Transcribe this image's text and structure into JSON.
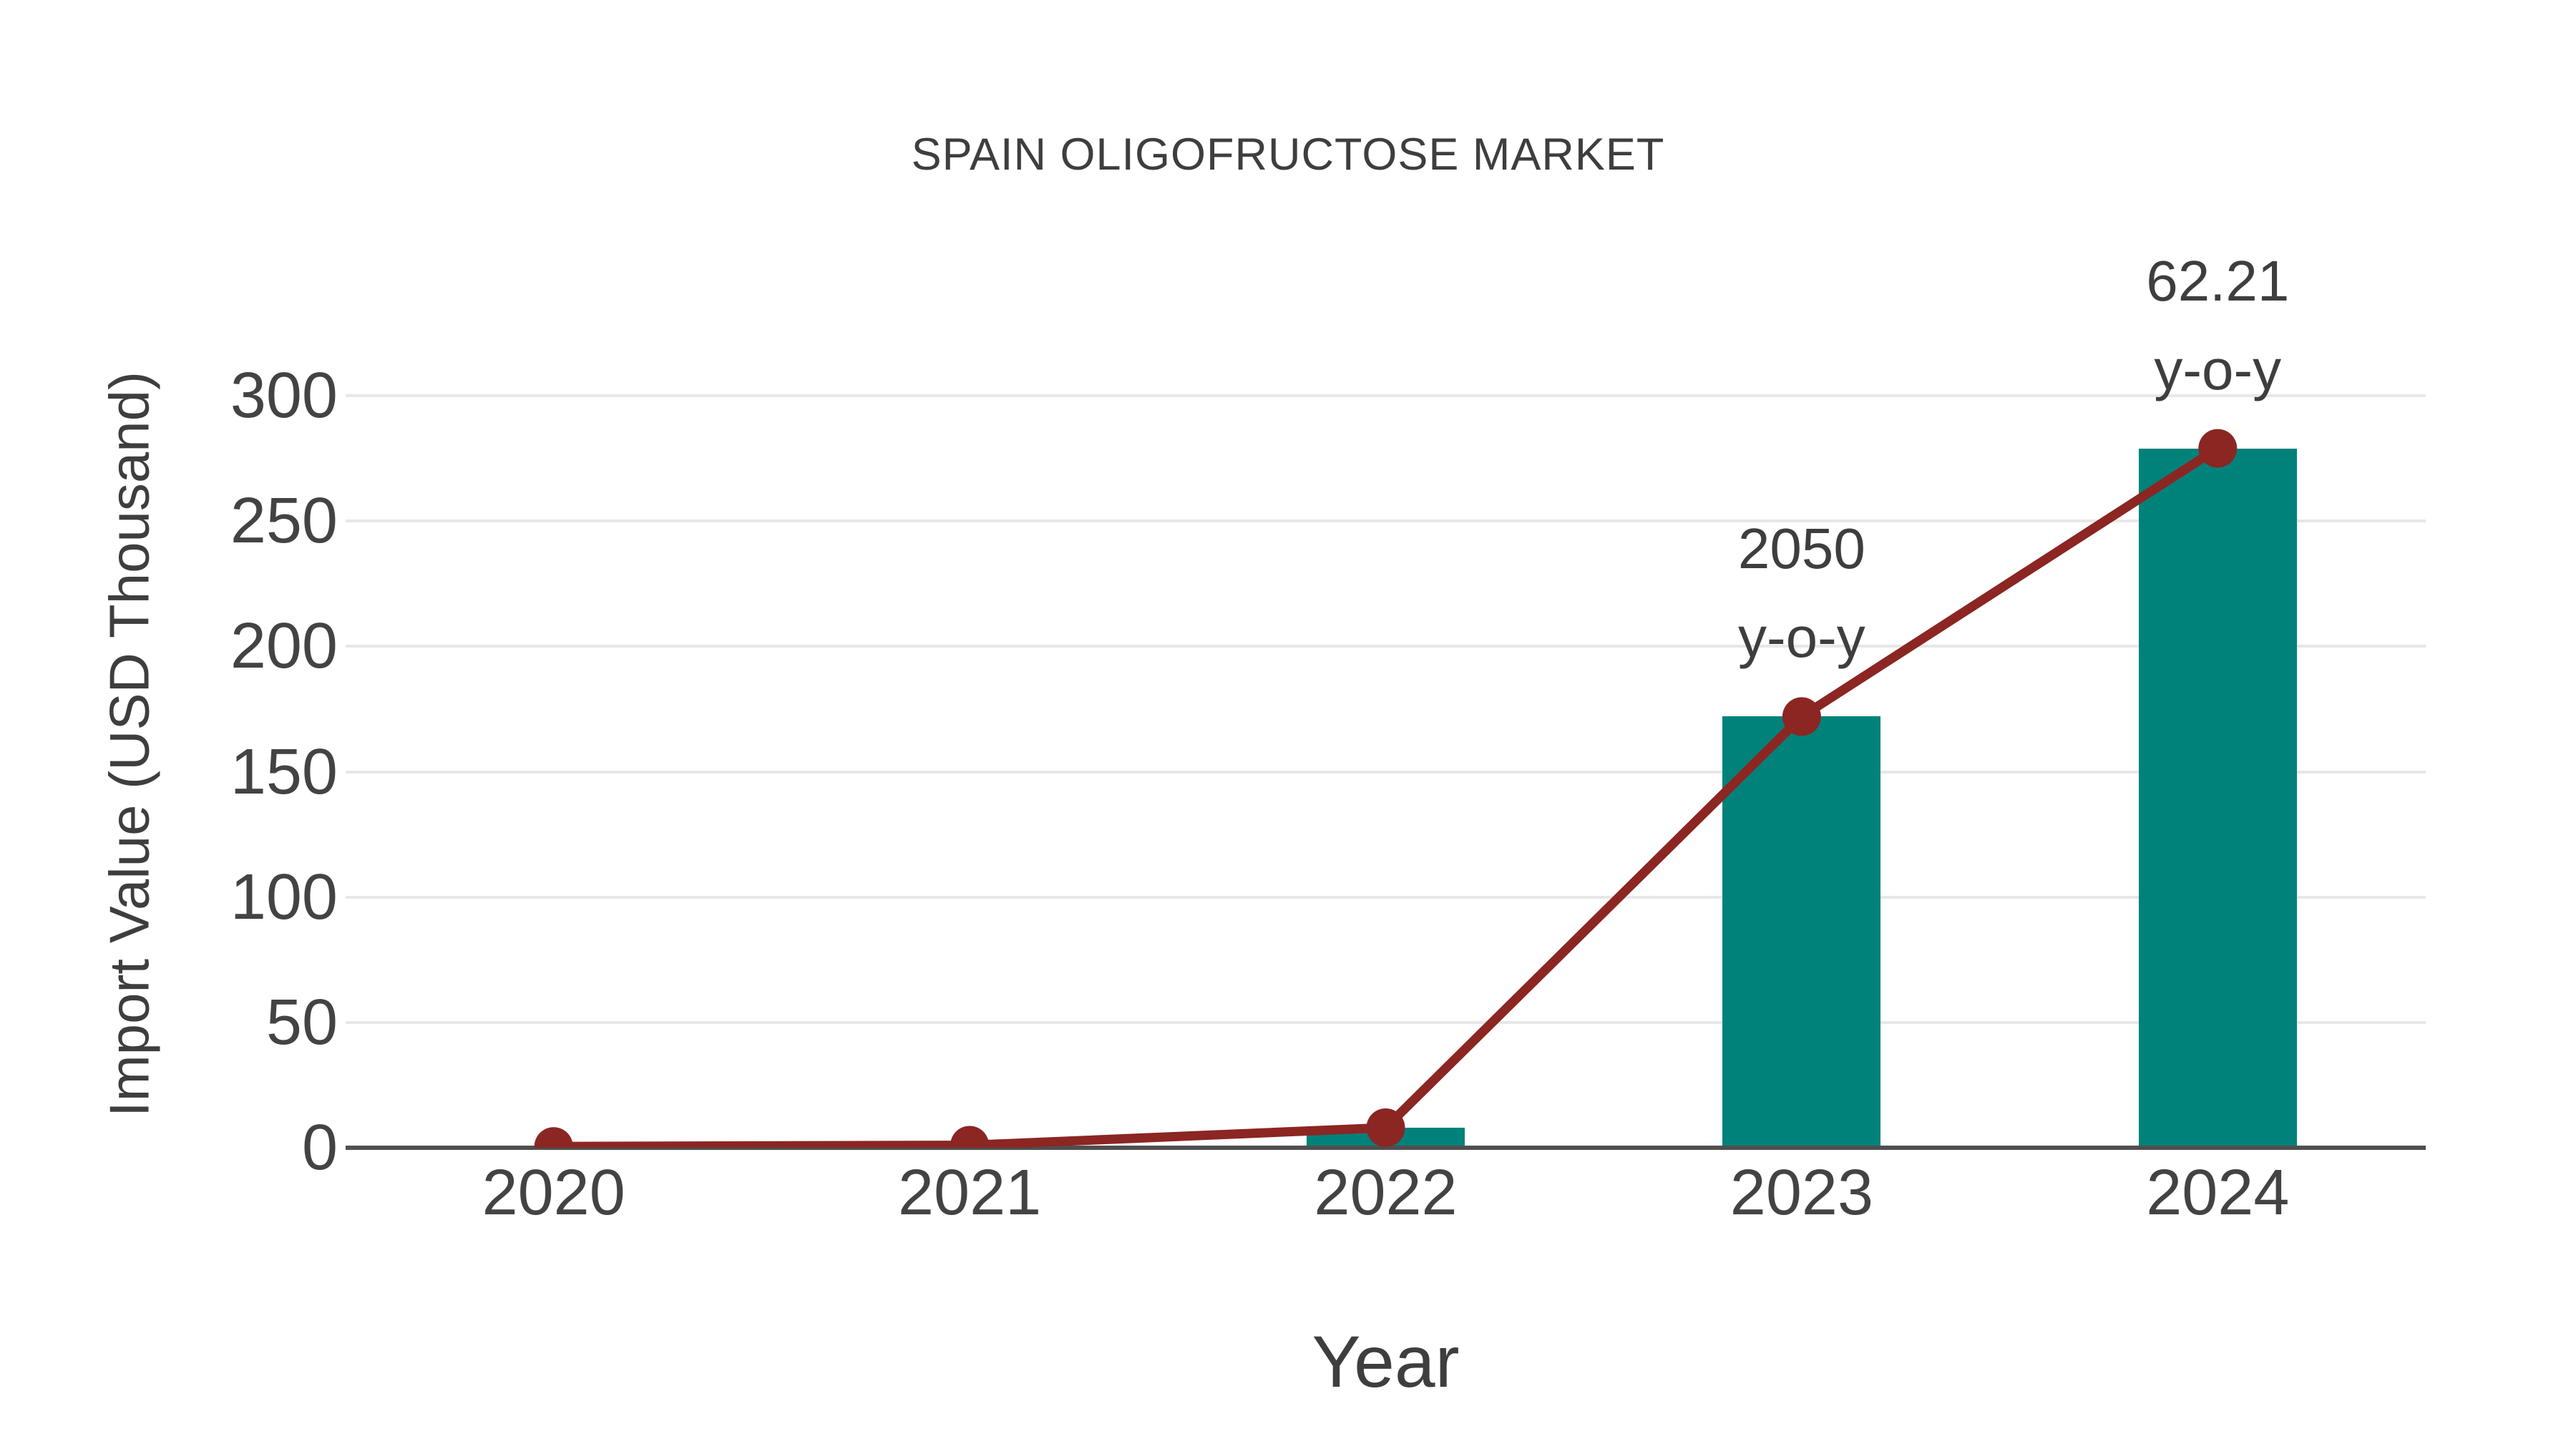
{
  "title": "SPAIN OLIGOFRUCTOSE MARKET",
  "chart_data": {
    "type": "bar",
    "subtype": "bar-line-combo",
    "title": "SPAIN OLIGOFRUCTOSE MARKET",
    "xlabel": "Year",
    "ylabel": "Import Value (USD Thousand)",
    "categories": [
      "2020",
      "2021",
      "2022",
      "2023",
      "2024"
    ],
    "series": [
      {
        "name": "import-value-bars",
        "type": "bar",
        "values": [
          0,
          0,
          8,
          172,
          279
        ]
      },
      {
        "name": "import-value-line",
        "type": "line",
        "values": [
          0.5,
          1,
          8,
          172,
          279
        ]
      }
    ],
    "annotations": [
      {
        "category": "2023",
        "lines": [
          "2050",
          "y-o-y"
        ]
      },
      {
        "category": "2024",
        "lines": [
          "62.21",
          "y-o-y"
        ]
      }
    ],
    "ylim": [
      0,
      300
    ],
    "yticks": [
      0,
      50,
      100,
      150,
      200,
      250,
      300
    ],
    "grid": true,
    "legend_position": "none",
    "colors": {
      "bar": "#00827B",
      "line": "#8B2623",
      "marker": "#8B2623",
      "grid": "#e7e7e7",
      "axis": "#4f4f4f",
      "text": "#3e3e3e",
      "tick_text": "#434343"
    }
  }
}
